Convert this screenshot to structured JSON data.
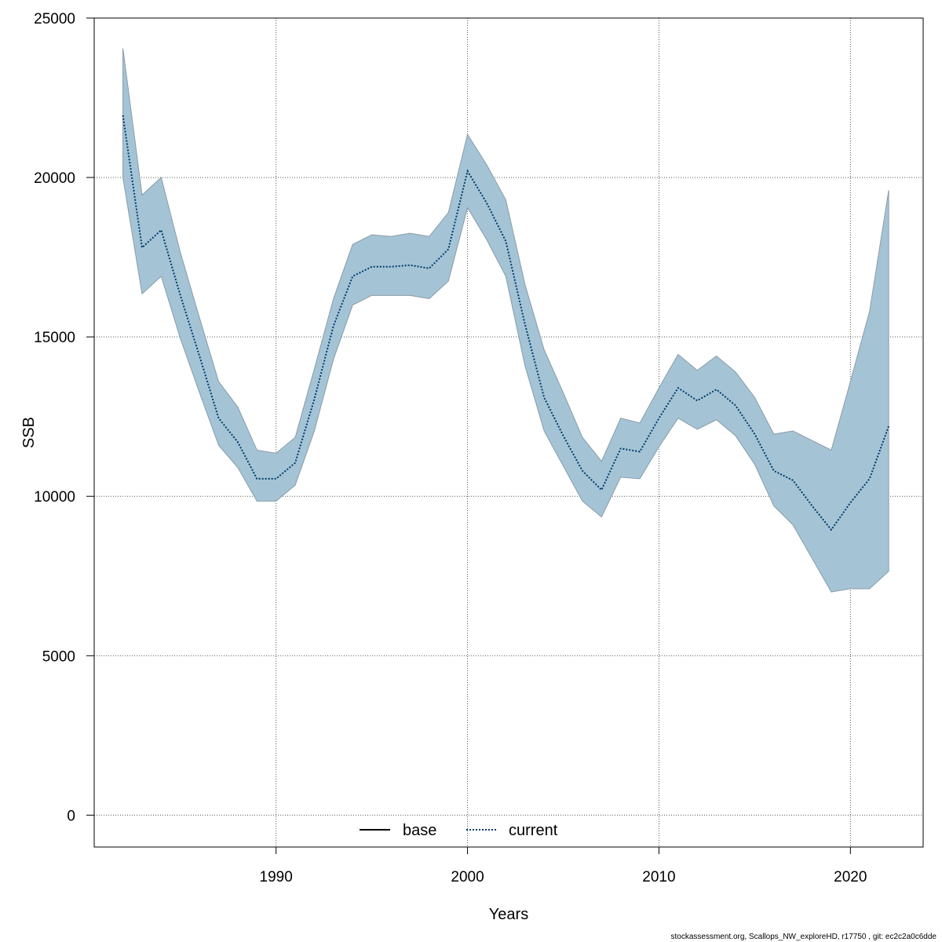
{
  "chart_data": {
    "type": "area",
    "title": "",
    "xlabel": "Years",
    "ylabel": "SSB",
    "xlim": [
      1980.5,
      2023.8
    ],
    "ylim": [
      -1000,
      25000
    ],
    "x_ticks": [
      1990,
      2000,
      2010,
      2020
    ],
    "y_ticks": [
      0,
      5000,
      10000,
      15000,
      20000,
      25000
    ],
    "grid": true,
    "legend_position": "bottom-center",
    "colors": {
      "band": "#a4c4d6",
      "band_edge": "#8a9ba8",
      "current_line": "#003a6b",
      "base_line": "#000000",
      "grid": "#555555"
    },
    "years": [
      1982,
      1983,
      1984,
      1985,
      1986,
      1987,
      1988,
      1989,
      1990,
      1991,
      1992,
      1993,
      1994,
      1995,
      1996,
      1997,
      1998,
      1999,
      2000,
      2001,
      2002,
      2003,
      2004,
      2005,
      2006,
      2007,
      2008,
      2009,
      2010,
      2011,
      2012,
      2013,
      2014,
      2015,
      2016,
      2017,
      2018,
      2019,
      2020,
      2021,
      2022
    ],
    "series": [
      {
        "name": "base",
        "style": "solid",
        "values": [
          21950,
          17800,
          18350,
          16300,
          14400,
          12450,
          11700,
          10550,
          10550,
          11050,
          13050,
          15350,
          16900,
          17200,
          17200,
          17250,
          17150,
          17750,
          20200,
          19200,
          18000,
          15400,
          13100,
          11900,
          10800,
          10200,
          11500,
          11400,
          12450,
          13400,
          13000,
          13350,
          12850,
          11950,
          10800,
          10500,
          9700,
          8950,
          9800,
          10550,
          12200
        ]
      },
      {
        "name": "current",
        "style": "dotted",
        "values": [
          21950,
          17800,
          18350,
          16300,
          14400,
          12450,
          11700,
          10550,
          10550,
          11050,
          13050,
          15350,
          16900,
          17200,
          17200,
          17250,
          17150,
          17750,
          20200,
          19200,
          18000,
          15400,
          13100,
          11900,
          10800,
          10200,
          11500,
          11400,
          12450,
          13400,
          13000,
          13350,
          12850,
          11950,
          10800,
          10500,
          9700,
          8950,
          9800,
          10550,
          12200
        ]
      }
    ],
    "interval": {
      "lower": [
        20000,
        16350,
        16900,
        14950,
        13250,
        11600,
        10900,
        9850,
        9850,
        10350,
        12050,
        14300,
        16000,
        16300,
        16300,
        16300,
        16200,
        16750,
        19050,
        18050,
        16900,
        14100,
        12050,
        10950,
        9850,
        9350,
        10600,
        10550,
        11550,
        12450,
        12100,
        12400,
        11900,
        11000,
        9700,
        9100,
        8050,
        7000,
        7100,
        7100,
        7650
      ],
      "upper": [
        24050,
        19450,
        20000,
        17650,
        15600,
        13600,
        12800,
        11450,
        11350,
        11850,
        14000,
        16200,
        17900,
        18200,
        18150,
        18250,
        18150,
        18900,
        21350,
        20400,
        19300,
        16650,
        14600,
        13250,
        11850,
        11100,
        12450,
        12300,
        13400,
        14450,
        13950,
        14400,
        13900,
        13100,
        11950,
        12050,
        11750,
        11450,
        13600,
        15800,
        19600
      ]
    },
    "footer": "stockassessment.org, Scallops_NW_exploreHD, r17750 , git: ec2c2a0c6dde"
  }
}
